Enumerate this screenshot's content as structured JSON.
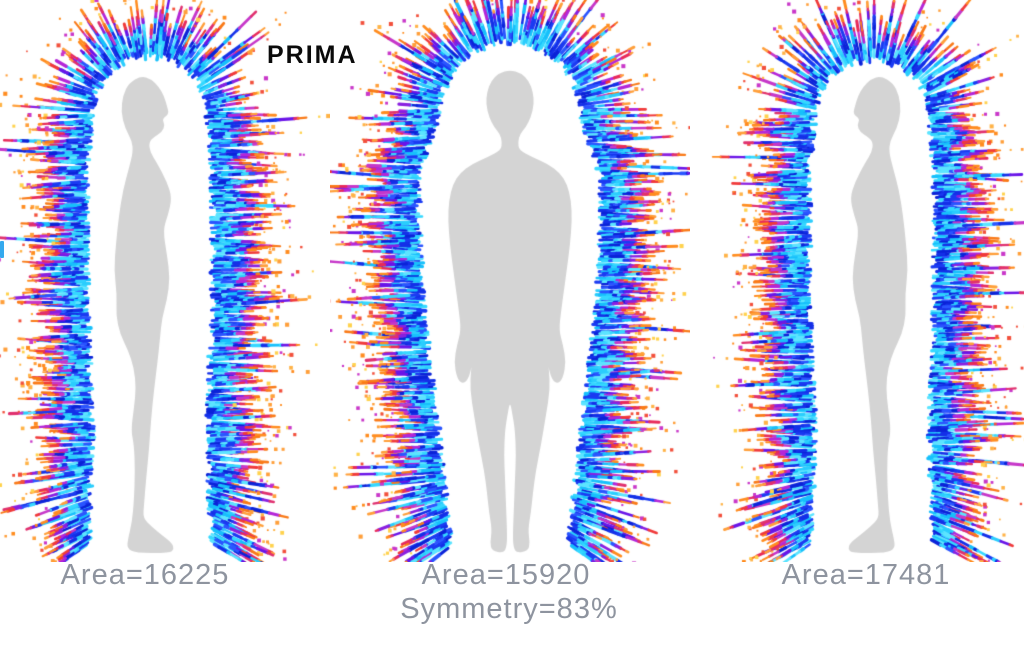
{
  "title": "PRIMA",
  "background": "#ffffff",
  "title_color": "#0a0a0a",
  "label_color": "#8e949f",
  "silhouette_color": "#d4d4d4",
  "edge_marker_color": "#35a9ee",
  "figures": [
    {
      "name": "side-profile-facing-right",
      "area_label": "Area=16225",
      "area_value": 16225
    },
    {
      "name": "front-view",
      "area_label": "Area=15920",
      "area_value": 15920,
      "symmetry_label": "Symmetry=83%",
      "symmetry_percent": 83
    },
    {
      "name": "side-profile-facing-left",
      "area_label": "Area=17481",
      "area_value": 17481
    }
  ],
  "aura_palette": {
    "cyan": [
      "#35d8ff",
      "#17c0fb",
      "#5ce4ff",
      "#2bcdfd"
    ],
    "blue": [
      "#1b3bf2",
      "#0b23d8",
      "#2a55ff",
      "#1430e8"
    ],
    "violet": [
      "#8a1fe0",
      "#b426d8",
      "#6a14e8",
      "#c637c9"
    ],
    "red": [
      "#e82a5a",
      "#f03a3a",
      "#e0306e"
    ],
    "orange": [
      "#ff8c1f",
      "#ff9f3a",
      "#f97a18"
    ],
    "dots": [
      "#ffb347",
      "#ff8c1f",
      "#f2503c",
      "#c937c9",
      "#ffd24d",
      "#ff9f3a"
    ]
  }
}
